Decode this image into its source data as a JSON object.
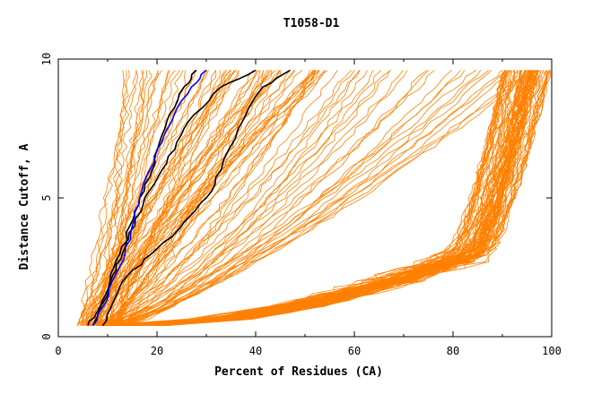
{
  "chart_data": {
    "type": "line",
    "title": "T1058-D1",
    "xlabel": "Percent of Residues (CA)",
    "ylabel": "Distance Cutoff, A",
    "xlim": [
      0,
      100
    ],
    "ylim": [
      0,
      10
    ],
    "x_ticks": [
      "0",
      "20",
      "40",
      "60",
      "80",
      "100"
    ],
    "y_ticks": [
      "0",
      "5",
      "10"
    ],
    "grid": false,
    "legend": "none",
    "colors": {
      "bulk": "#FF8000",
      "highlight_black": "#000000",
      "highlight_blue": "#0000FF",
      "frame": "#000000"
    },
    "highlighted_series": [
      {
        "color": "#000000",
        "points": [
          [
            7,
            0.4
          ],
          [
            9,
            1.2
          ],
          [
            11,
            2.2
          ],
          [
            13,
            3.0
          ],
          [
            14.5,
            4.0
          ],
          [
            16.5,
            5.0
          ],
          [
            19,
            6.0
          ],
          [
            20.5,
            7.0
          ],
          [
            22.5,
            8.0
          ],
          [
            25.5,
            9.0
          ],
          [
            28,
            9.6
          ]
        ]
      },
      {
        "color": "#000000",
        "points": [
          [
            6,
            0.4
          ],
          [
            8.5,
            1.0
          ],
          [
            10.5,
            2.0
          ],
          [
            12.5,
            3.0
          ],
          [
            15.5,
            4.0
          ],
          [
            17.5,
            5.0
          ],
          [
            21,
            6.0
          ],
          [
            24,
            7.0
          ],
          [
            27.5,
            8.0
          ],
          [
            33,
            9.0
          ],
          [
            40,
            9.6
          ]
        ]
      },
      {
        "color": "#000000",
        "points": [
          [
            9,
            0.4
          ],
          [
            11,
            1.2
          ],
          [
            14,
            2.2
          ],
          [
            19,
            3.0
          ],
          [
            24,
            3.8
          ],
          [
            27,
            4.4
          ],
          [
            30,
            5.0
          ],
          [
            33,
            6.0
          ],
          [
            36.5,
            7.5
          ],
          [
            41.5,
            9.0
          ],
          [
            47,
            9.6
          ]
        ]
      },
      {
        "color": "#0000FF",
        "points": [
          [
            7,
            0.4
          ],
          [
            9.5,
            1.2
          ],
          [
            11.5,
            2.2
          ],
          [
            13.5,
            3.0
          ],
          [
            15,
            4.0
          ],
          [
            16.5,
            5.0
          ],
          [
            18.5,
            6.0
          ],
          [
            21,
            7.0
          ],
          [
            23.5,
            8.0
          ],
          [
            27,
            9.0
          ],
          [
            30,
            9.6
          ]
        ]
      }
    ],
    "bulk_series": {
      "count": 180,
      "description_groups": [
        {
          "name": "steep",
          "x_at_0_4": [
            4,
            12
          ],
          "x_at_9_6": [
            13,
            55
          ]
        },
        {
          "name": "middle",
          "x_at_0_4": [
            6,
            14
          ],
          "x_at_9_6": [
            40,
            100
          ]
        },
        {
          "name": "high-coverage",
          "x_at_0_4": [
            8,
            22
          ],
          "x_at_9_6": [
            90,
            100
          ]
        }
      ]
    }
  }
}
